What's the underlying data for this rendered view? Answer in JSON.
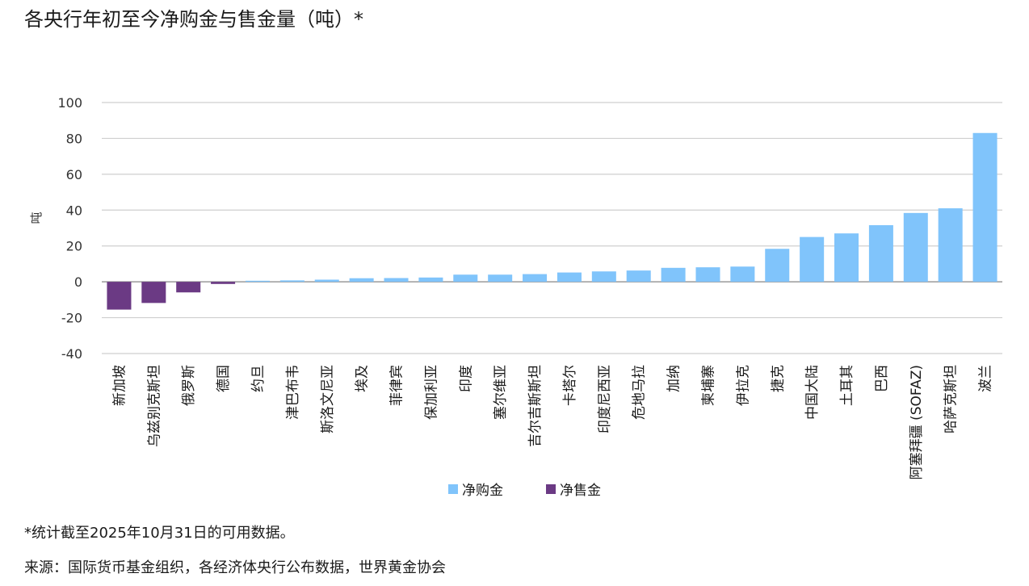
{
  "chart_data": {
    "type": "bar",
    "title": "各央行年初至今净购金与售金量（吨）*",
    "ylabel": "吨",
    "xlabel": "",
    "ylim": [
      -40,
      100
    ],
    "yticks": [
      -40,
      -20,
      0,
      20,
      40,
      60,
      80,
      100
    ],
    "grid": true,
    "legend_position": "bottom",
    "categories": [
      "新加坡",
      "乌兹别克斯坦",
      "俄罗斯",
      "德国",
      "约旦",
      "津巴布韦",
      "斯洛文尼亚",
      "埃及",
      "菲律宾",
      "保加利亚",
      "印度",
      "塞尔维亚",
      "吉尔吉斯斯坦",
      "卡塔尔",
      "印度尼西亚",
      "危地马拉",
      "加纳",
      "柬埔寨",
      "伊拉克",
      "捷克",
      "中国大陆",
      "土耳其",
      "巴西",
      "阿塞拜疆 (SOFAZ)",
      "哈萨克斯坦",
      "波兰"
    ],
    "values": [
      -15.5,
      -11.8,
      -5.9,
      -1.2,
      0.6,
      0.8,
      1.2,
      2.0,
      2.1,
      2.4,
      4.0,
      4.0,
      4.3,
      5.2,
      5.8,
      6.3,
      7.8,
      8.1,
      8.5,
      18.4,
      25.0,
      27.0,
      31.6,
      38.4,
      41.0,
      83.0
    ],
    "series": [
      {
        "name": "净购金",
        "color": "#80c4fb"
      },
      {
        "name": "净售金",
        "color": "#6b3a84"
      }
    ]
  },
  "footnote": "*统计截至2025年10月31日的可用数据。",
  "source": "来源：国际货币基金组织，各经济体央行公布数据，世界黄金协会"
}
